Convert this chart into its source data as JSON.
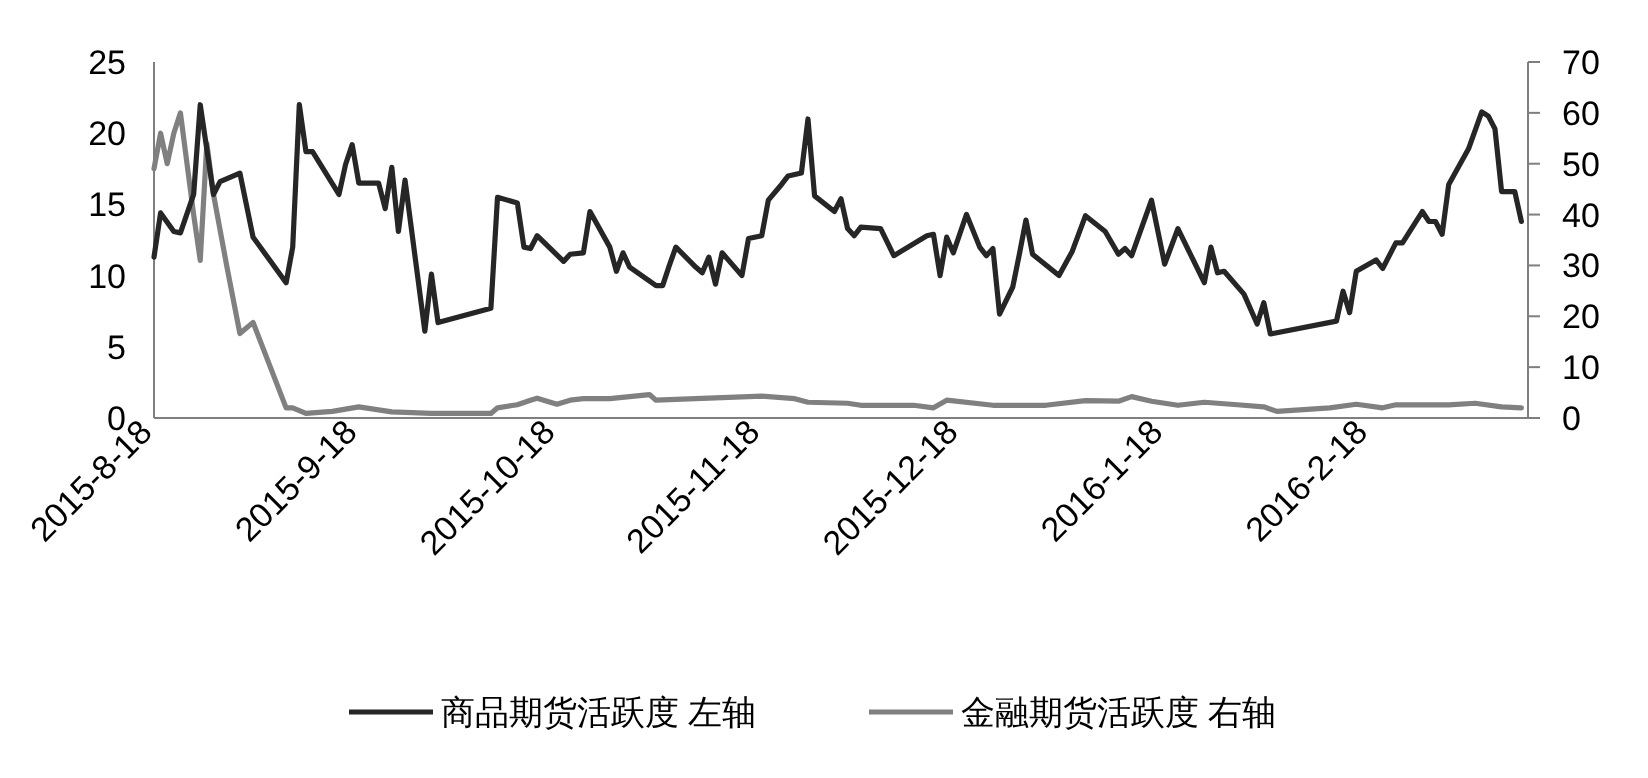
{
  "chart_data": {
    "type": "line",
    "legend": "bottom",
    "xlim": [
      "2015-08-18",
      "2016-03-13"
    ],
    "xticks": [
      {
        "value": "2015-08-18",
        "label": "2015-8-18"
      },
      {
        "value": "2015-09-18",
        "label": "2015-9-18"
      },
      {
        "value": "2015-10-18",
        "label": "2015-10-18"
      },
      {
        "value": "2015-11-18",
        "label": "2015-11-18"
      },
      {
        "value": "2015-12-18",
        "label": "2015-12-18"
      },
      {
        "value": "2016-01-18",
        "label": "2016-1-18"
      },
      {
        "value": "2016-02-18",
        "label": "2016-2-18"
      }
    ],
    "ylim": [
      0,
      25
    ],
    "yticks": [
      0,
      5,
      10,
      15,
      20,
      25
    ],
    "y2lim": [
      0,
      70
    ],
    "y2ticks": [
      0,
      10,
      20,
      30,
      40,
      50,
      60,
      70
    ],
    "series": [
      {
        "name": "商品期货活跃度 左轴",
        "color": "#262626",
        "axis": "y",
        "x": [
          "2015-08-18",
          "2015-08-19",
          "2015-08-21",
          "2015-08-22",
          "2015-08-24",
          "2015-08-25",
          "2015-08-27",
          "2015-08-28",
          "2015-08-31",
          "2015-09-02",
          "2015-09-07",
          "2015-09-08",
          "2015-09-09",
          "2015-09-10",
          "2015-09-11",
          "2015-09-15",
          "2015-09-16",
          "2015-09-17",
          "2015-09-18",
          "2015-09-21",
          "2015-09-22",
          "2015-09-23",
          "2015-09-24",
          "2015-09-25",
          "2015-09-28",
          "2015-09-29",
          "2015-09-30",
          "2015-10-08",
          "2015-10-09",
          "2015-10-12",
          "2015-10-13",
          "2015-10-14",
          "2015-10-15",
          "2015-10-19",
          "2015-10-20",
          "2015-10-22",
          "2015-10-23",
          "2015-10-26",
          "2015-10-27",
          "2015-10-28",
          "2015-10-29",
          "2015-11-02",
          "2015-11-03",
          "2015-11-04",
          "2015-11-05",
          "2015-11-08",
          "2015-11-09",
          "2015-11-10",
          "2015-11-11",
          "2015-11-12",
          "2015-11-15",
          "2015-11-16",
          "2015-11-18",
          "2015-11-19",
          "2015-11-21",
          "2015-11-22",
          "2015-11-24",
          "2015-11-25",
          "2015-11-26",
          "2015-11-29",
          "2015-11-30",
          "2015-12-01",
          "2015-12-02",
          "2015-12-03",
          "2015-12-06",
          "2015-12-08",
          "2015-12-13",
          "2015-12-14",
          "2015-12-15",
          "2015-12-16",
          "2015-12-17",
          "2015-12-19",
          "2015-12-21",
          "2015-12-22",
          "2015-12-23",
          "2015-12-24",
          "2015-12-26",
          "2015-12-27",
          "2015-12-28",
          "2015-12-29",
          "2016-01-02",
          "2016-01-04",
          "2016-01-06",
          "2016-01-09",
          "2016-01-11",
          "2016-01-12",
          "2016-01-13",
          "2016-01-16",
          "2016-01-18",
          "2016-01-20",
          "2016-01-24",
          "2016-01-25",
          "2016-01-26",
          "2016-01-27",
          "2016-01-30",
          "2016-02-01",
          "2016-02-02",
          "2016-02-03",
          "2016-02-13",
          "2016-02-14",
          "2016-02-15",
          "2016-02-16",
          "2016-02-19",
          "2016-02-20",
          "2016-02-22",
          "2016-02-23",
          "2016-02-26",
          "2016-02-27",
          "2016-02-28",
          "2016-02-29",
          "2016-03-01",
          "2016-03-04",
          "2016-03-06",
          "2016-03-07",
          "2016-03-08",
          "2016-03-09",
          "2016-03-11",
          "2016-03-12"
        ],
        "values": [
          11.3,
          14.4,
          13.1,
          13.0,
          15.7,
          22.0,
          15.7,
          16.6,
          17.2,
          12.7,
          9.5,
          12.0,
          22.0,
          18.7,
          18.7,
          15.7,
          17.8,
          19.2,
          16.5,
          16.5,
          14.7,
          17.6,
          13.1,
          16.7,
          6.1,
          10.1,
          6.7,
          7.7,
          15.5,
          15.1,
          12.0,
          11.9,
          12.8,
          11.0,
          11.5,
          11.6,
          14.5,
          12.0,
          10.3,
          11.6,
          10.6,
          9.3,
          9.3,
          10.7,
          12.0,
          10.6,
          10.2,
          11.3,
          9.4,
          11.6,
          10.0,
          12.6,
          12.8,
          15.3,
          16.4,
          17.0,
          17.2,
          21.0,
          15.6,
          14.5,
          15.4,
          13.3,
          12.8,
          13.4,
          13.3,
          11.4,
          12.8,
          12.9,
          10.0,
          12.7,
          11.6,
          14.3,
          12.0,
          11.4,
          11.9,
          7.3,
          9.2,
          11.5,
          13.9,
          11.5,
          10.0,
          11.7,
          14.2,
          13.1,
          11.5,
          11.9,
          11.4,
          15.3,
          10.8,
          13.3,
          9.5,
          12.0,
          10.2,
          10.3,
          8.7,
          6.6,
          8.1,
          5.9,
          6.8,
          8.9,
          7.4,
          10.3,
          11.1,
          10.5,
          12.3,
          12.3,
          14.5,
          13.8,
          13.8,
          12.9,
          16.4,
          18.9,
          21.5,
          21.2,
          20.3,
          15.9,
          15.9,
          13.8
        ]
      },
      {
        "name": "金融期货活跃度 右轴",
        "color": "#808080",
        "axis": "y2",
        "x": [
          "2015-08-18",
          "2015-08-19",
          "2015-08-20",
          "2015-08-21",
          "2015-08-22",
          "2015-08-23",
          "2015-08-24",
          "2015-08-25",
          "2015-08-26",
          "2015-08-27",
          "2015-08-29",
          "2015-08-31",
          "2015-09-02",
          "2015-09-07",
          "2015-09-08",
          "2015-09-10",
          "2015-09-14",
          "2015-09-18",
          "2015-09-23",
          "2015-09-29",
          "2015-10-08",
          "2015-10-09",
          "2015-10-12",
          "2015-10-14",
          "2015-10-15",
          "2015-10-18",
          "2015-10-20",
          "2015-10-22",
          "2015-10-26",
          "2015-11-01",
          "2015-11-02",
          "2015-11-08",
          "2015-11-18",
          "2015-11-23",
          "2015-11-25",
          "2015-12-01",
          "2015-12-03",
          "2015-12-11",
          "2015-12-14",
          "2015-12-16",
          "2015-12-23",
          "2015-12-31",
          "2016-01-06",
          "2016-01-11",
          "2016-01-13",
          "2016-01-16",
          "2016-01-20",
          "2016-01-24",
          "2016-01-29",
          "2016-02-02",
          "2016-02-04",
          "2016-02-12",
          "2016-02-16",
          "2016-02-20",
          "2016-02-22",
          "2016-03-01",
          "2016-03-05",
          "2016-03-09",
          "2016-03-12"
        ],
        "values": [
          49,
          56,
          50,
          56,
          60,
          50,
          40,
          31,
          54,
          44,
          30,
          16.6,
          18.8,
          2.0,
          2.0,
          0.9,
          1.3,
          2.2,
          1.2,
          0.9,
          0.9,
          2.0,
          2.6,
          3.5,
          3.9,
          2.7,
          3.5,
          3.8,
          3.8,
          4.6,
          3.5,
          3.8,
          4.3,
          3.8,
          3.1,
          2.9,
          2.5,
          2.5,
          2.0,
          3.5,
          2.5,
          2.5,
          3.4,
          3.3,
          4.2,
          3.3,
          2.5,
          3.1,
          2.6,
          2.2,
          1.3,
          2.0,
          2.7,
          2.0,
          2.6,
          2.6,
          2.9,
          2.2,
          2.0
        ]
      }
    ]
  }
}
